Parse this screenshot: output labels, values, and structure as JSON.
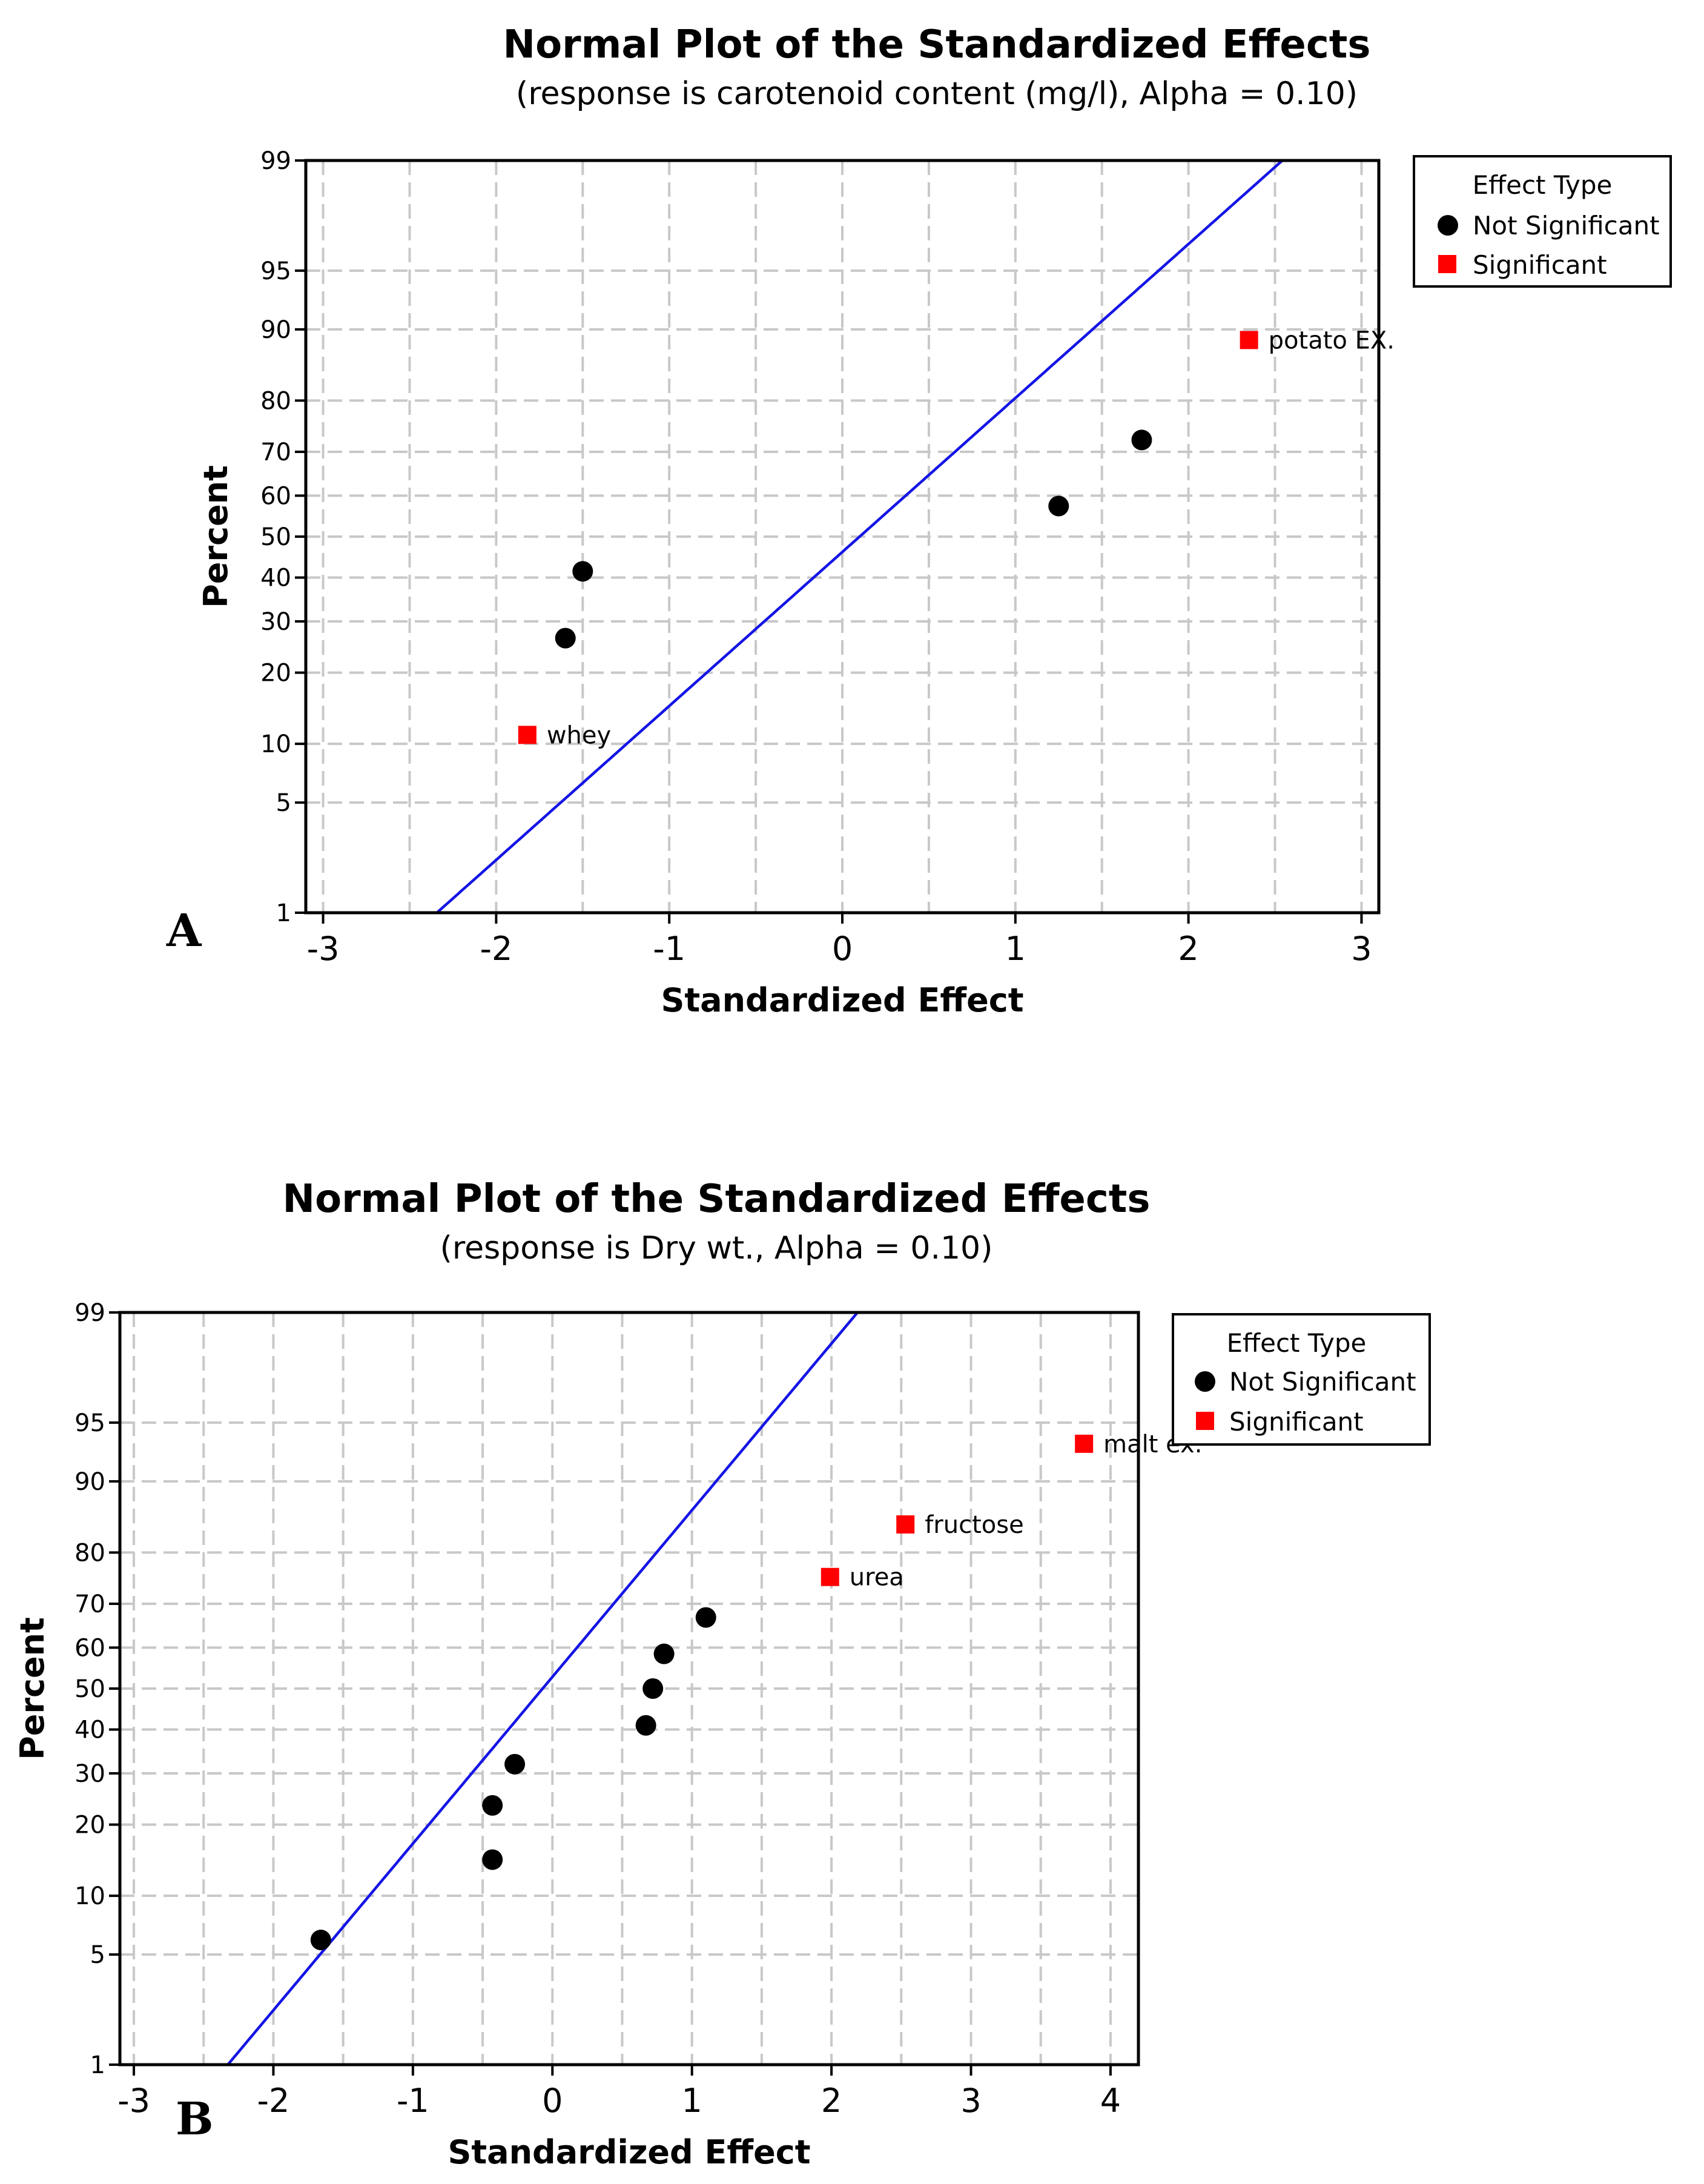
{
  "chart_data": [
    {
      "type": "scatter",
      "panel_letter": "A",
      "title": "Normal Plot of the Standardized Effects",
      "subtitle": "(response is carotenoid content (mg/l), Alpha = 0.10)",
      "xlabel": "Standardized Effect",
      "ylabel": "Percent",
      "xlim": [
        -3.1,
        3.1
      ],
      "x_ticks": [
        -3,
        -2,
        -1,
        0,
        1,
        2,
        3
      ],
      "x_tick_labels": [
        "-3",
        "-2",
        "-1",
        "0",
        "1",
        "2",
        "3"
      ],
      "x_grid": [
        -3,
        -2.5,
        -2,
        -1.5,
        -1,
        -0.5,
        0,
        0.5,
        1,
        1.5,
        2,
        2.5,
        3
      ],
      "y_ticks": [
        1,
        5,
        10,
        20,
        30,
        40,
        50,
        60,
        70,
        80,
        90,
        95,
        99
      ],
      "y_tick_labels": [
        "1",
        "5",
        "10",
        "20",
        "30",
        "40",
        "50",
        "60",
        "70",
        "80",
        "90",
        "95",
        "99"
      ],
      "grid": true,
      "legend": {
        "title": "Effect Type",
        "items": [
          "Not Significant",
          "Significant"
        ],
        "position": "right"
      },
      "fit_line": {
        "mean": 0.1,
        "sd": 1.05
      },
      "series": [
        {
          "name": "Not Significant",
          "marker": "circle",
          "color": "#000000",
          "points": [
            {
              "x": -1.6,
              "y": 26.5
            },
            {
              "x": -1.5,
              "y": 41.5
            },
            {
              "x": 1.25,
              "y": 57.5
            },
            {
              "x": 1.73,
              "y": 72.5
            }
          ]
        },
        {
          "name": "Significant",
          "marker": "square",
          "color": "#ff0000",
          "points": [
            {
              "x": -1.82,
              "y": 11.0,
              "label": "whey"
            },
            {
              "x": 2.35,
              "y": 88.8,
              "label": "potato EX."
            }
          ]
        }
      ]
    },
    {
      "type": "scatter",
      "panel_letter": "B",
      "title": "Normal Plot of the Standardized Effects",
      "subtitle": "(response is Dry wt., Alpha = 0.10)",
      "xlabel": "Standardized Effect",
      "ylabel": "Percent",
      "xlim": [
        -3.1,
        4.2
      ],
      "x_ticks": [
        -3,
        -2,
        -1,
        0,
        1,
        2,
        3,
        4
      ],
      "x_tick_labels": [
        "-3",
        "-2",
        "-1",
        "0",
        "1",
        "2",
        "3",
        "4"
      ],
      "x_grid": [
        -3,
        -2.5,
        -2,
        -1.5,
        -1,
        -0.5,
        0,
        0.5,
        1,
        1.5,
        2,
        2.5,
        3,
        3.5,
        4
      ],
      "y_ticks": [
        1,
        5,
        10,
        20,
        30,
        40,
        50,
        60,
        70,
        80,
        90,
        95,
        99
      ],
      "y_tick_labels": [
        "1",
        "5",
        "10",
        "20",
        "30",
        "40",
        "50",
        "60",
        "70",
        "80",
        "90",
        "95",
        "99"
      ],
      "grid": true,
      "legend": {
        "title": "Effect Type",
        "items": [
          "Not Significant",
          "Significant"
        ],
        "position": "right"
      },
      "fit_line": {
        "mean": -0.07,
        "sd": 0.97
      },
      "series": [
        {
          "name": "Not Significant",
          "marker": "circle",
          "color": "#000000",
          "points": [
            {
              "x": -1.66,
              "y": 6.0
            },
            {
              "x": -0.43,
              "y": 14.5
            },
            {
              "x": -0.43,
              "y": 23.5
            },
            {
              "x": -0.27,
              "y": 32.0
            },
            {
              "x": 0.67,
              "y": 41.0
            },
            {
              "x": 0.72,
              "y": 50.0
            },
            {
              "x": 0.8,
              "y": 58.5
            },
            {
              "x": 1.1,
              "y": 67.0
            }
          ]
        },
        {
          "name": "Significant",
          "marker": "square",
          "color": "#ff0000",
          "points": [
            {
              "x": 1.99,
              "y": 75.5,
              "label": "urea"
            },
            {
              "x": 2.53,
              "y": 84.5,
              "label": "fructose"
            },
            {
              "x": 3.81,
              "y": 93.5,
              "label": "malt ex."
            }
          ]
        }
      ]
    }
  ]
}
